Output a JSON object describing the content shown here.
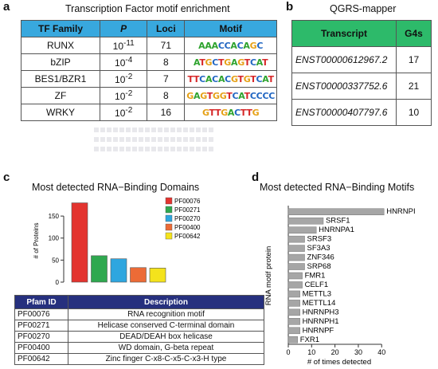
{
  "panel_a": {
    "letter": "a",
    "title": "Transcription Factor motif enrichment",
    "headers": [
      "TF Family",
      "P",
      "Loci",
      "Motif"
    ],
    "rows": [
      {
        "family": "RUNX",
        "p_base": "10",
        "p_exp": "-11",
        "loci": "71",
        "motif": "AAACCACAGC"
      },
      {
        "family": "bZIP",
        "p_base": "10",
        "p_exp": "-4",
        "loci": "8",
        "motif": "ATGCTGAGTCAT"
      },
      {
        "family": "BES1/BZR1",
        "p_base": "10",
        "p_exp": "-2",
        "loci": "7",
        "motif": "TTCACACGTGTCAT"
      },
      {
        "family": "ZF",
        "p_base": "10",
        "p_exp": "-2",
        "loci": "8",
        "motif": "GAGTGGTCATCCCC"
      },
      {
        "family": "WRKY",
        "p_base": "10",
        "p_exp": "-2",
        "loci": "16",
        "motif": "GTTGACTTG"
      }
    ]
  },
  "panel_b": {
    "letter": "b",
    "title": "QGRS-mapper",
    "headers": [
      "Transcript",
      "G4s"
    ],
    "rows": [
      {
        "transcript": "ENST00000612967.2",
        "g4s": "17"
      },
      {
        "transcript": "ENST00000337752.6",
        "g4s": "21"
      },
      {
        "transcript": "ENST00000407797.6",
        "g4s": "10"
      }
    ]
  },
  "panel_c": {
    "letter": "c",
    "title": "Most detected RNA−Binding Domains",
    "pfam_headers": [
      "Pfam ID",
      "Description"
    ],
    "pfam_rows": [
      {
        "id": "PF00076",
        "desc": "RNA recognition motif"
      },
      {
        "id": "PF00271",
        "desc": "Helicase conserved C-terminal domain"
      },
      {
        "id": "PF00270",
        "desc": "DEAD/DEAH box helicase"
      },
      {
        "id": "PF00400",
        "desc": "WD domain, G-beta repeat"
      },
      {
        "id": "PF00642",
        "desc": "Zinc finger C-x8-C-x5-C-x3-H type"
      }
    ]
  },
  "panel_d": {
    "letter": "d",
    "title": "Most detected RNA−Binding Motifs"
  },
  "colors": {
    "A": "#2ea32e",
    "C": "#2166c2",
    "G": "#e6a117",
    "T": "#d62728",
    "tf_header": "#38a8de",
    "qgrs_header": "#2dba6a",
    "pfam_header": "#26307e",
    "hbar": "#a6a6a6"
  },
  "chart_data": [
    {
      "type": "bar",
      "categories": [
        "PF00076",
        "PF00271",
        "PF00270",
        "PF00400",
        "PF00642"
      ],
      "values": [
        180,
        60,
        53,
        33,
        32
      ],
      "colors": [
        "#e3342f",
        "#2fa84f",
        "#2ea6df",
        "#ec6b36",
        "#f4e31c"
      ],
      "ylabel": "# of Proteins",
      "yticks": [
        0,
        50,
        100,
        150
      ],
      "ylim": [
        0,
        190
      ],
      "legend": [
        "PF00076",
        "PF00271",
        "PF00270",
        "PF00400",
        "PF00642"
      ],
      "legend_position": "right"
    },
    {
      "type": "bar",
      "orientation": "horizontal",
      "categories": [
        "HNRNPI",
        "SRSF1",
        "HNRNPA1",
        "SRSF3",
        "SF3A3",
        "ZNF346",
        "SRP68",
        "FMR1",
        "CELF1",
        "METTL3",
        "METTL14",
        "HNRNPH3",
        "HNRNPH1",
        "HNRNPF",
        "FXR1"
      ],
      "values": [
        41,
        15,
        12,
        7,
        7,
        7,
        7,
        6,
        6,
        5,
        5,
        5,
        5,
        5,
        4
      ],
      "xlabel": "# of times detected",
      "ylabel": "RNA motif protein",
      "xticks": [
        0,
        10,
        20,
        30,
        40
      ],
      "xlim": [
        0,
        44
      ]
    }
  ]
}
